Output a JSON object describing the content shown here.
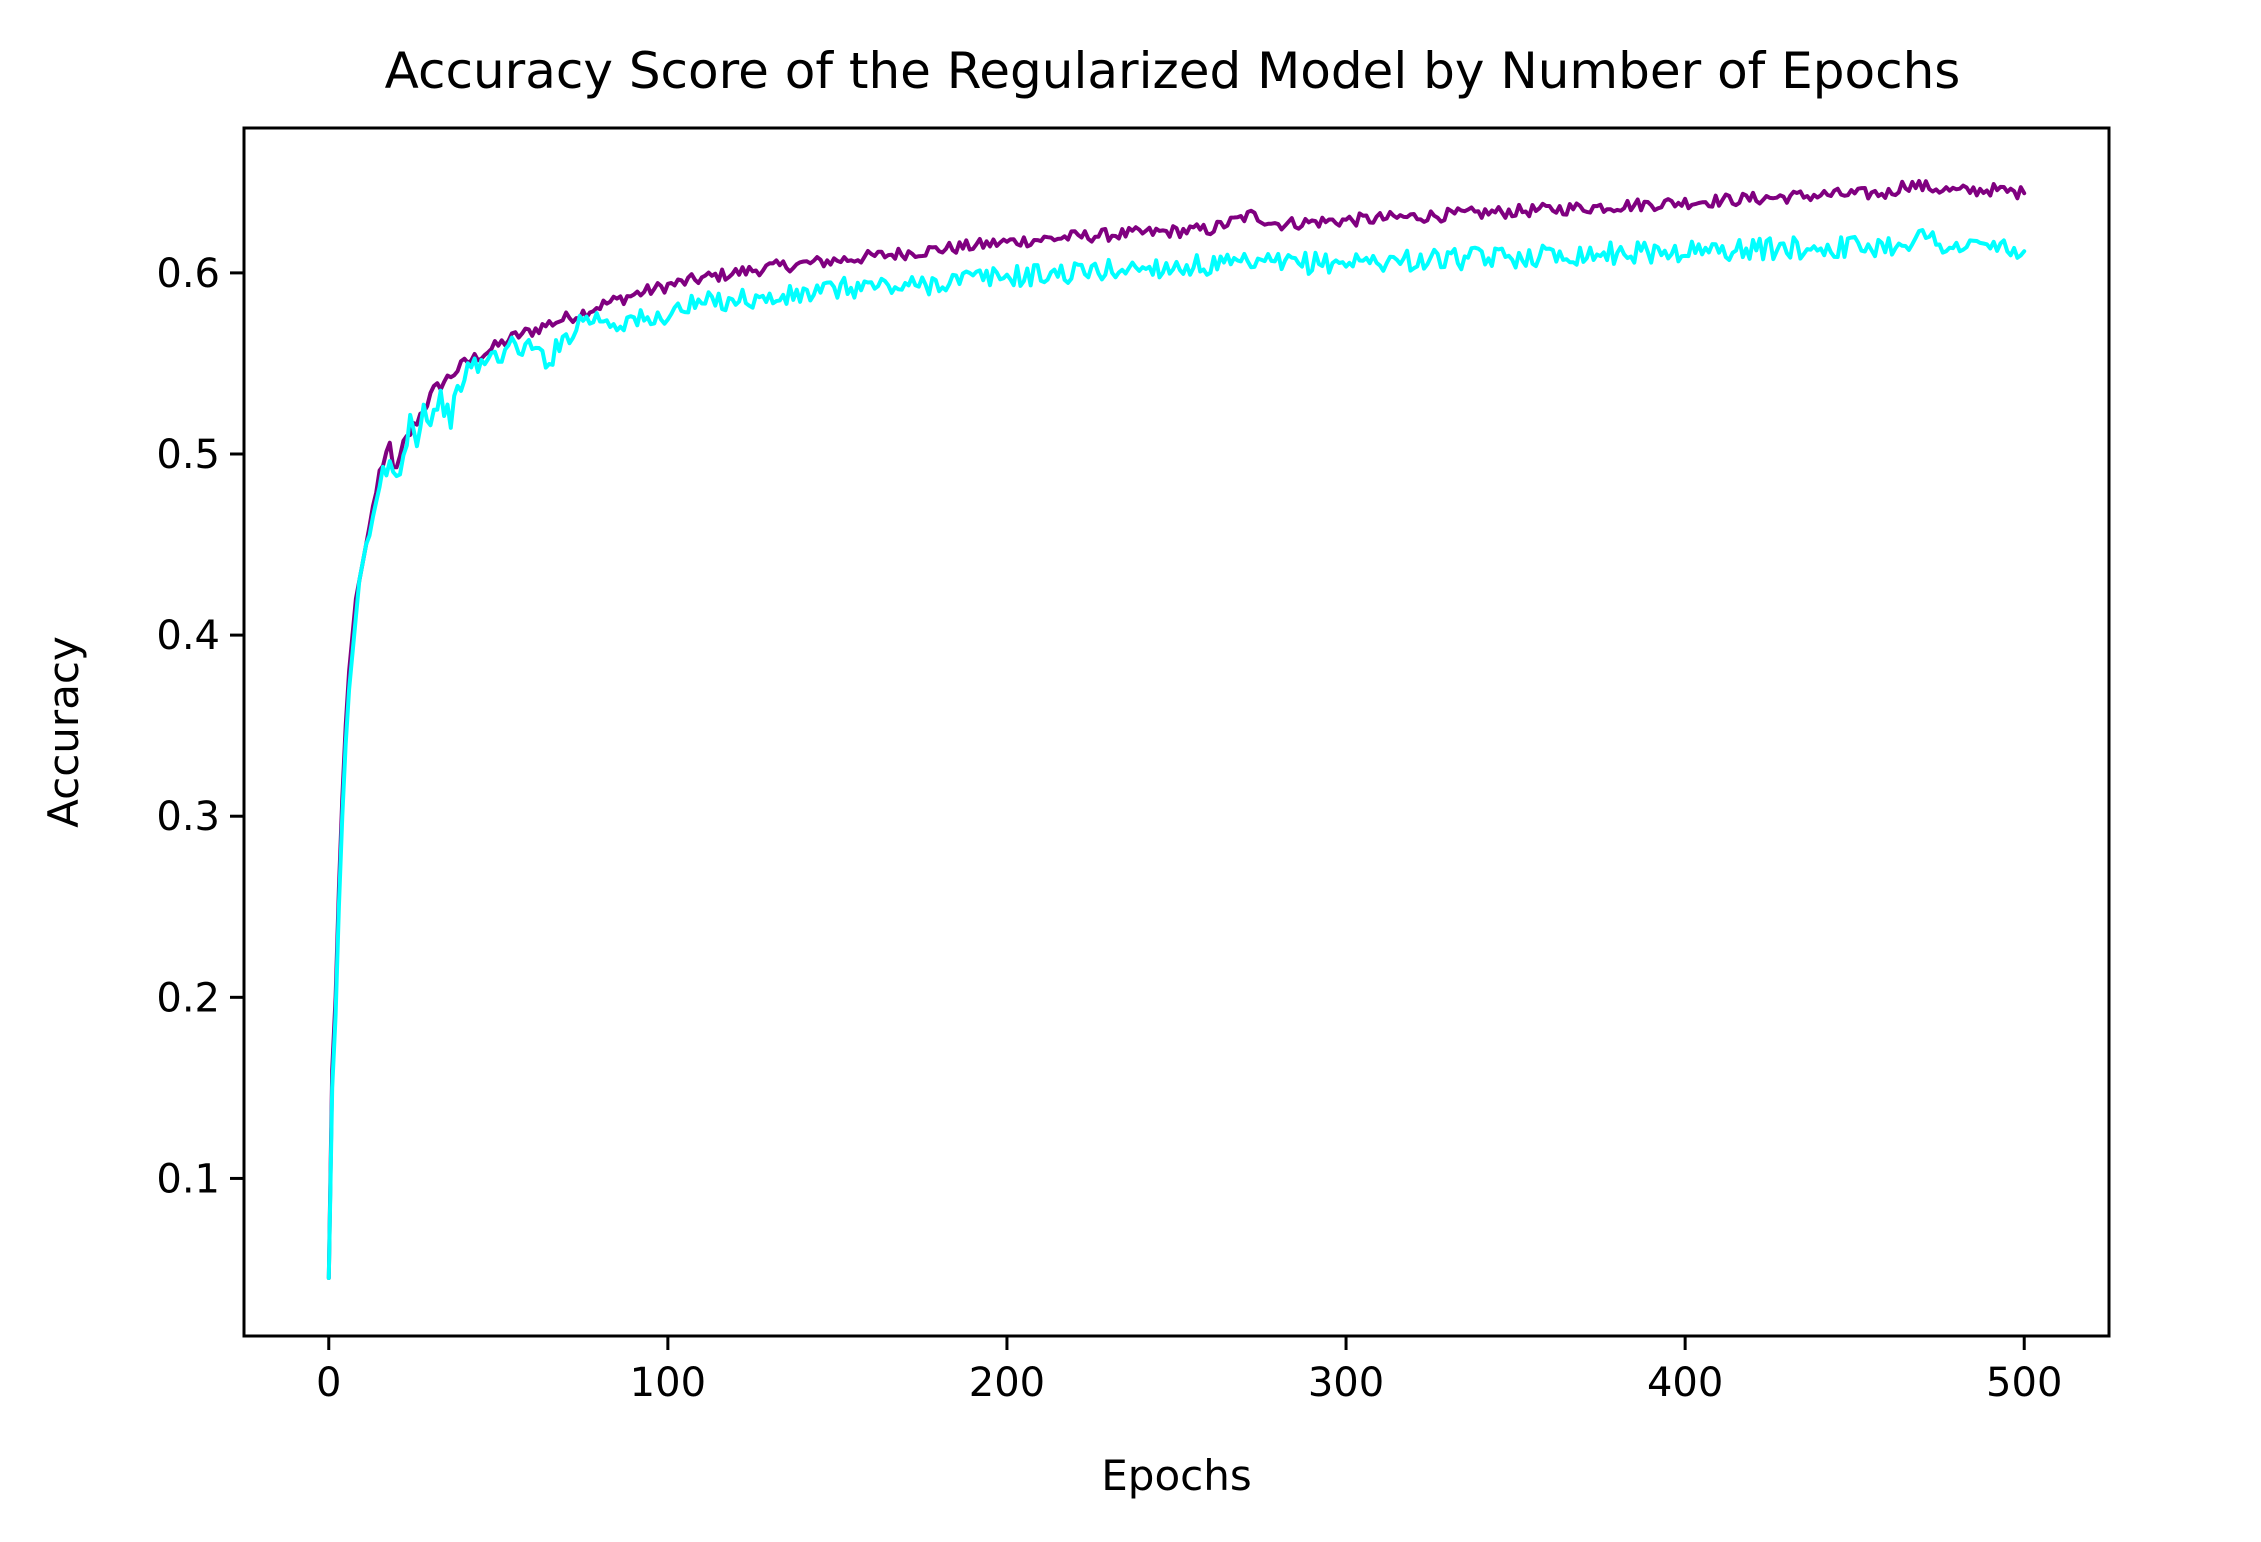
{
  "chart_data": {
    "type": "line",
    "title": "Accuracy Score of the Regularized Model by Number of Epochs",
    "xlabel": "Epochs",
    "ylabel": "Accuracy",
    "xlim": [
      -25,
      525
    ],
    "ylim": [
      0.013,
      0.68
    ],
    "xticks": [
      0,
      100,
      200,
      300,
      400,
      500
    ],
    "yticks": [
      0.1,
      0.2,
      0.3,
      0.4,
      0.5,
      0.6
    ],
    "xtick_labels": [
      "0",
      "100",
      "200",
      "300",
      "400",
      "500"
    ],
    "ytick_labels": [
      "0.1",
      "0.2",
      "0.3",
      "0.4",
      "0.5",
      "0.6"
    ],
    "grid": false,
    "legend": false,
    "series": [
      {
        "color": "#800080",
        "x": [
          0,
          1,
          2,
          3,
          4,
          5,
          6,
          7,
          8,
          9,
          10,
          11,
          12,
          13,
          14,
          15,
          16,
          17,
          18,
          19,
          20,
          22,
          25,
          28,
          31,
          34,
          37,
          40,
          45,
          50,
          55,
          60,
          65,
          70,
          75,
          80,
          90,
          100,
          110,
          120,
          130,
          140,
          150,
          160,
          170,
          180,
          190,
          200,
          220,
          240,
          260,
          272,
          280,
          300,
          320,
          340,
          360,
          380,
          400,
          420,
          440,
          460,
          465,
          480,
          490,
          500
        ],
        "y": [
          0.045,
          0.16,
          0.2,
          0.26,
          0.31,
          0.35,
          0.38,
          0.4,
          0.42,
          0.43,
          0.44,
          0.45,
          0.46,
          0.47,
          0.48,
          0.49,
          0.49,
          0.5,
          0.505,
          0.495,
          0.49,
          0.505,
          0.515,
          0.525,
          0.535,
          0.54,
          0.545,
          0.55,
          0.555,
          0.56,
          0.565,
          0.568,
          0.572,
          0.575,
          0.578,
          0.582,
          0.588,
          0.593,
          0.597,
          0.6,
          0.603,
          0.605,
          0.607,
          0.609,
          0.611,
          0.613,
          0.615,
          0.617,
          0.62,
          0.622,
          0.624,
          0.632,
          0.627,
          0.629,
          0.631,
          0.633,
          0.635,
          0.637,
          0.639,
          0.641,
          0.643,
          0.644,
          0.649,
          0.645,
          0.646,
          0.644
        ]
      },
      {
        "color": "#00ffff",
        "x": [
          0,
          1,
          2,
          3,
          4,
          5,
          6,
          7,
          8,
          9,
          10,
          11,
          12,
          13,
          14,
          15,
          16,
          17,
          18,
          19,
          20,
          22,
          24,
          26,
          28,
          30,
          33,
          36,
          40,
          45,
          50,
          55,
          60,
          65,
          70,
          75,
          80,
          85,
          90,
          95,
          100,
          110,
          120,
          130,
          140,
          150,
          160,
          170,
          180,
          190,
          200,
          220,
          240,
          260,
          280,
          300,
          320,
          340,
          360,
          380,
          400,
          420,
          440,
          460,
          470,
          480,
          490,
          500
        ],
        "y": [
          0.045,
          0.15,
          0.19,
          0.25,
          0.3,
          0.34,
          0.37,
          0.39,
          0.41,
          0.43,
          0.44,
          0.45,
          0.455,
          0.46,
          0.47,
          0.48,
          0.49,
          0.49,
          0.495,
          0.49,
          0.485,
          0.5,
          0.52,
          0.51,
          0.525,
          0.52,
          0.53,
          0.52,
          0.545,
          0.55,
          0.555,
          0.56,
          0.558,
          0.552,
          0.565,
          0.575,
          0.575,
          0.572,
          0.575,
          0.572,
          0.578,
          0.583,
          0.586,
          0.585,
          0.588,
          0.591,
          0.593,
          0.592,
          0.595,
          0.597,
          0.598,
          0.6,
          0.603,
          0.604,
          0.605,
          0.606,
          0.607,
          0.608,
          0.61,
          0.611,
          0.612,
          0.613,
          0.614,
          0.615,
          0.62,
          0.614,
          0.615,
          0.612
        ]
      }
    ]
  }
}
